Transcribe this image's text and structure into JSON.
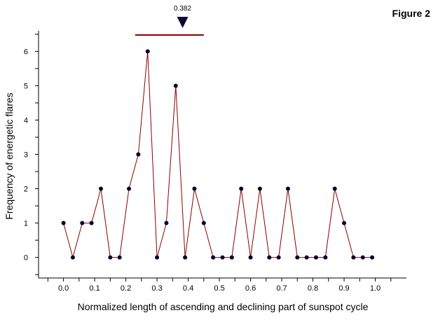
{
  "figure_label": "Figure 2",
  "colors": {
    "line": "#8b0000",
    "point": "#000033",
    "axis": "#000000",
    "marker": "#0a0a33",
    "range": "#8b0000"
  },
  "chart_data": {
    "type": "line",
    "title": "",
    "xlabel": "Normalized length of ascending and declining part of sunspot cycle",
    "ylabel": "Frequency of energetic flares",
    "xlim": [
      -0.08,
      1.1
    ],
    "ylim": [
      -0.6,
      6.6
    ],
    "x_ticks": [
      0.0,
      0.1,
      0.2,
      0.3,
      0.4,
      0.5,
      0.6,
      0.7,
      0.8,
      0.9,
      1.0
    ],
    "x_tick_labels": [
      "0.0",
      "0.1",
      "0.2",
      "0.3",
      "0.4",
      "0.5",
      "0.6",
      "0.7",
      "0.8",
      "0.9",
      "1.0"
    ],
    "y_ticks": [
      0,
      1,
      2,
      3,
      4,
      5,
      6
    ],
    "y_tick_labels": [
      "0",
      "1",
      "2",
      "3",
      "4",
      "5",
      "6"
    ],
    "grid": false,
    "series": [
      {
        "x": [
          0.0,
          0.03,
          0.06,
          0.09,
          0.12,
          0.15,
          0.18,
          0.21,
          0.24,
          0.27,
          0.3,
          0.33,
          0.36,
          0.39,
          0.42,
          0.45,
          0.48,
          0.51,
          0.54,
          0.57,
          0.6,
          0.63,
          0.66,
          0.69,
          0.72,
          0.75,
          0.78,
          0.81,
          0.84,
          0.87,
          0.9,
          0.93,
          0.96,
          0.99
        ],
        "y": [
          1,
          0,
          1,
          1,
          2,
          0,
          0,
          2,
          3,
          6,
          0,
          1,
          5,
          0,
          2,
          1,
          0,
          0,
          0,
          2,
          0,
          2,
          0,
          0,
          2,
          0,
          0,
          0,
          0,
          2,
          1,
          0,
          0,
          0
        ]
      }
    ],
    "annotations": {
      "marker_value": 0.382,
      "marker_label": "0.382",
      "range": [
        0.23,
        0.45
      ]
    }
  }
}
